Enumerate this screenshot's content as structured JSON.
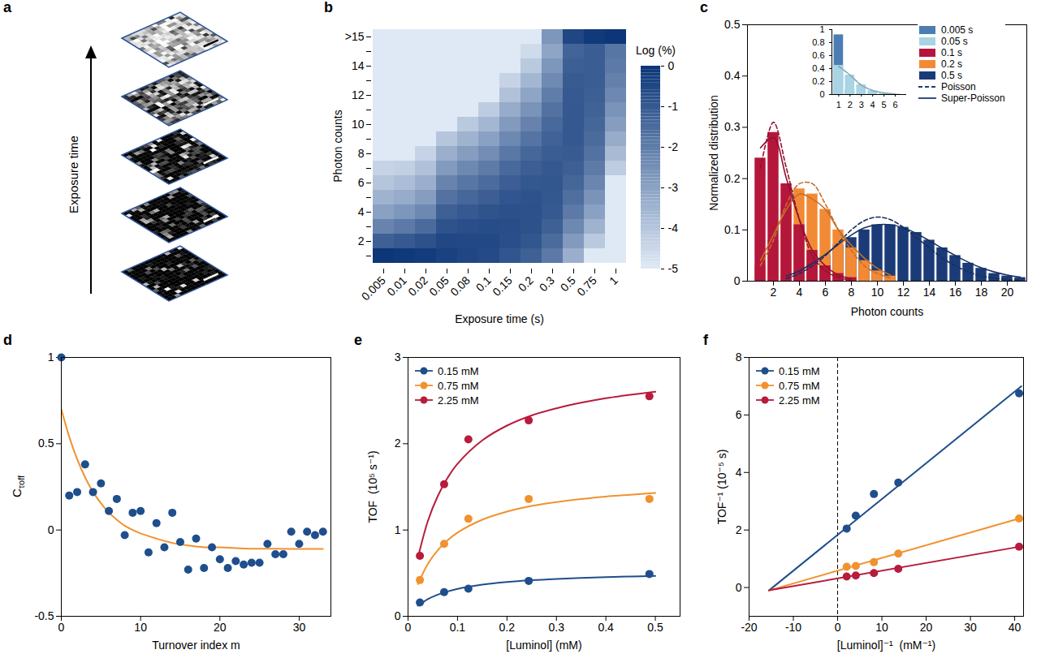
{
  "chart_data": [
    {
      "panel": "a",
      "type": "image_stack",
      "ylabel": "Exposure time"
    },
    {
      "panel": "b",
      "type": "heatmap",
      "xlabel": "Exposure time (s)",
      "ylabel": "Photon counts",
      "x": [
        0.005,
        0.01,
        0.02,
        0.05,
        0.08,
        0.1,
        0.15,
        0.2,
        0.3,
        0.5,
        0.75,
        1
      ],
      "categories": [
        null,
        2,
        null,
        4,
        null,
        6,
        null,
        8,
        null,
        10,
        null,
        12,
        null,
        14,
        null,
        ">15"
      ],
      "cells": [
        [
          -0.04,
          -1.2,
          -2.2,
          -3.0,
          -3.5,
          -4.0,
          -4.4,
          -5,
          -5,
          -5,
          -5,
          -5,
          -5,
          -5,
          -5,
          -5
        ],
        [
          -0.1,
          -1.0,
          -1.9,
          -2.7,
          -3.3,
          -3.8,
          -4.3,
          -5,
          -5,
          -5,
          -5,
          -5,
          -5,
          -5,
          -5,
          -5
        ],
        [
          -0.2,
          -0.8,
          -1.5,
          -2.3,
          -2.9,
          -3.4,
          -3.9,
          -4.4,
          -5,
          -5,
          -5,
          -5,
          -5,
          -5,
          -5,
          -5
        ],
        [
          -0.35,
          -0.52,
          -0.82,
          -1.2,
          -1.7,
          -2.2,
          -2.8,
          -3.4,
          -4.0,
          -5,
          -5,
          -5,
          -5,
          -5,
          -5,
          -5
        ],
        [
          -0.5,
          -0.55,
          -0.7,
          -1.0,
          -1.4,
          -1.8,
          -2.3,
          -2.9,
          -3.5,
          -4.1,
          -5,
          -5,
          -5,
          -5,
          -5,
          -5
        ],
        [
          -0.62,
          -0.54,
          -0.66,
          -0.85,
          -1.15,
          -1.5,
          -1.95,
          -2.45,
          -3.0,
          -3.6,
          -4.2,
          -5,
          -5,
          -5,
          -5,
          -5
        ],
        [
          -0.9,
          -0.7,
          -0.68,
          -0.75,
          -0.9,
          -1.15,
          -1.45,
          -1.85,
          -2.3,
          -2.8,
          -3.3,
          -3.9,
          -4.4,
          -5,
          -5,
          -5
        ],
        [
          -1.2,
          -0.92,
          -0.8,
          -0.78,
          -0.82,
          -0.95,
          -1.15,
          -1.4,
          -1.75,
          -2.15,
          -2.6,
          -3.1,
          -3.6,
          -4.1,
          -4.6,
          -5
        ],
        [
          -1.9,
          -1.5,
          -1.2,
          -1.0,
          -0.95,
          -0.93,
          -0.98,
          -1.1,
          -1.25,
          -1.45,
          -1.7,
          -2.0,
          -2.35,
          -2.7,
          -3.1,
          -2.7
        ],
        [
          -3.4,
          -2.8,
          -2.3,
          -1.9,
          -1.6,
          -1.35,
          -1.17,
          -1.05,
          -0.98,
          -0.96,
          -0.96,
          -1.0,
          -1.07,
          -1.17,
          -1.3,
          -0.5
        ],
        [
          -5,
          -4.1,
          -3.5,
          -3.0,
          -2.6,
          -2.25,
          -1.95,
          -1.7,
          -1.5,
          -1.35,
          -1.25,
          -1.17,
          -1.12,
          -1.1,
          -1.1,
          -0.15
        ],
        [
          -5,
          -5,
          -5,
          -5,
          -5,
          -5,
          -4.2,
          -3.7,
          -3.3,
          -2.9,
          -2.6,
          -2.3,
          -2.1,
          -1.9,
          -1.8,
          -0.03
        ]
      ],
      "colorbar": {
        "label": "Log (%)",
        "lim": [
          -5,
          0
        ],
        "ticks": [
          0,
          -1,
          -2,
          -3,
          -4,
          -5
        ]
      }
    },
    {
      "panel": "c",
      "type": "bar",
      "xlabel": "Photon counts",
      "ylabel": "Normalized distribution",
      "xlim": [
        0,
        21.5
      ],
      "xticks": [
        2,
        4,
        6,
        8,
        10,
        12,
        14,
        16,
        18,
        20
      ],
      "ylim": [
        0,
        0.5
      ],
      "yticks": [
        0,
        0.1,
        0.2,
        0.3,
        0.4,
        0.5
      ],
      "legend": "top-right",
      "series": [
        {
          "name": "0.1 s",
          "color": "#b5163b",
          "x": [
            1,
            2,
            3,
            4,
            5,
            6,
            7,
            8
          ],
          "values": [
            0.24,
            0.29,
            0.19,
            0.11,
            0.06,
            0.03,
            0.015,
            0.007
          ],
          "poisson": [
            0.22,
            0.31,
            0.22,
            0.12,
            0.05,
            0.02,
            0.007,
            0.002
          ],
          "super_poisson": [
            0.26,
            0.28,
            0.2,
            0.12,
            0.06,
            0.03,
            0.012,
            0.005
          ]
        },
        {
          "name": "0.2 s",
          "color": "#f28a35",
          "x": [
            1,
            2,
            3,
            4,
            5,
            6,
            7,
            8,
            9,
            10,
            11
          ],
          "values": [
            0.03,
            0.08,
            0.15,
            0.18,
            0.17,
            0.14,
            0.1,
            0.065,
            0.04,
            0.02,
            0.01
          ],
          "poisson": [
            0.03,
            0.08,
            0.15,
            0.19,
            0.19,
            0.15,
            0.1,
            0.06,
            0.03,
            0.015,
            0.006
          ],
          "super_poisson": [
            0.04,
            0.09,
            0.14,
            0.17,
            0.16,
            0.14,
            0.1,
            0.07,
            0.045,
            0.025,
            0.012
          ]
        },
        {
          "name": "0.5 s",
          "color": "#1b3b78",
          "x": [
            3,
            4,
            5,
            6,
            7,
            8,
            9,
            10,
            11,
            12,
            13,
            14,
            15,
            16,
            17,
            18,
            19,
            20,
            21
          ],
          "values": [
            0.01,
            0.02,
            0.035,
            0.05,
            0.07,
            0.085,
            0.1,
            0.11,
            0.11,
            0.105,
            0.095,
            0.08,
            0.065,
            0.05,
            0.035,
            0.025,
            0.015,
            0.01,
            0.007
          ],
          "poisson": [
            0.005,
            0.015,
            0.03,
            0.05,
            0.075,
            0.1,
            0.118,
            0.125,
            0.12,
            0.105,
            0.085,
            0.065,
            0.045,
            0.03,
            0.018,
            0.01,
            0.006,
            0.003,
            0.002
          ],
          "super_poisson": [
            0.01,
            0.02,
            0.035,
            0.052,
            0.072,
            0.09,
            0.104,
            0.11,
            0.11,
            0.104,
            0.093,
            0.079,
            0.064,
            0.05,
            0.037,
            0.026,
            0.018,
            0.012,
            0.008
          ]
        }
      ],
      "fit_legend": [
        {
          "name": "Poisson",
          "line_style": "dashed",
          "color": "#1b3b78"
        },
        {
          "name": "Super-Poisson",
          "line_style": "solid",
          "color": "#1b3b78"
        }
      ],
      "inset": {
        "type": "bar",
        "xlim": [
          0.4,
          7
        ],
        "xticks": [
          1,
          2,
          3,
          4,
          5,
          6
        ],
        "ylim": [
          0,
          1
        ],
        "yticks": [
          0,
          0.2,
          0.4,
          0.6,
          0.8,
          1
        ],
        "series": [
          {
            "name": "0.005 s",
            "color": "#4a7db3",
            "x": [
              1,
              2,
              3,
              4,
              5,
              6
            ],
            "values": [
              0.92,
              0.07,
              0.01,
              0,
              0,
              0
            ]
          },
          {
            "name": "0.05 s",
            "color": "#a8d4e4",
            "x": [
              1,
              2,
              3,
              4,
              5,
              6
            ],
            "values": [
              0.45,
              0.3,
              0.15,
              0.06,
              0.02,
              0.01
            ],
            "poisson": [
              0.43,
              0.3,
              0.15,
              0.065,
              0.025,
              0.008
            ],
            "super_poisson": [
              0.44,
              0.3,
              0.14,
              0.06,
              0.025,
              0.01
            ]
          }
        ]
      }
    },
    {
      "panel": "d",
      "type": "scatter",
      "xlabel": "Turnover index m",
      "ylabel": "C",
      "ylabel_subscript": "τoff",
      "xlim": [
        0,
        34
      ],
      "xticks": [
        0,
        10,
        20,
        30
      ],
      "ylim": [
        -0.5,
        1
      ],
      "yticks": [
        -0.5,
        0,
        0.5,
        1
      ],
      "marker": "circle",
      "color": "#1f4e8c",
      "x": [
        0,
        1,
        2,
        3,
        4,
        5,
        6,
        7,
        8,
        9,
        10,
        11,
        12,
        13,
        14,
        15,
        16,
        17,
        18,
        19,
        20,
        21,
        22,
        23,
        24,
        25,
        26,
        27,
        28,
        29,
        30,
        31,
        32,
        33
      ],
      "values": [
        1.0,
        0.2,
        0.22,
        0.38,
        0.22,
        0.27,
        0.11,
        0.18,
        -0.03,
        0.1,
        0.11,
        -0.13,
        0.04,
        -0.1,
        0.1,
        -0.07,
        -0.23,
        -0.05,
        -0.22,
        -0.1,
        -0.17,
        -0.22,
        -0.18,
        -0.2,
        -0.19,
        -0.19,
        -0.08,
        -0.14,
        -0.14,
        -0.01,
        -0.08,
        -0.01,
        -0.03,
        -0.01
      ],
      "fit": {
        "color": "#f0922f",
        "x": [
          0,
          1,
          2,
          3,
          4,
          5,
          6,
          7,
          8,
          9,
          10,
          12,
          14,
          16,
          18,
          20,
          22,
          24,
          27,
          30,
          33
        ],
        "values": [
          0.7,
          0.54,
          0.41,
          0.305,
          0.22,
          0.155,
          0.1,
          0.06,
          0.025,
          0.0,
          -0.02,
          -0.05,
          -0.075,
          -0.09,
          -0.1,
          -0.1,
          -0.105,
          -0.108,
          -0.109,
          -0.11,
          -0.11
        ]
      }
    },
    {
      "panel": "e",
      "type": "scatter",
      "xlabel": "[Luminol] (mM)",
      "ylabel": "TOF  (10⁵ s⁻¹)",
      "xlim": [
        0,
        0.55
      ],
      "xticks": [
        0,
        0.1,
        0.2,
        0.3,
        0.4,
        0.5
      ],
      "ylim": [
        0,
        3
      ],
      "yticks": [
        0,
        1,
        2,
        3
      ],
      "marker": "circle",
      "legend": "top-left",
      "x": [
        0.024,
        0.073,
        0.122,
        0.244,
        0.488
      ],
      "series": [
        {
          "name": "0.15 mM",
          "color": "#1f4e8c",
          "values": [
            0.16,
            0.28,
            0.32,
            0.41,
            0.49
          ],
          "fit": {
            "x": [
              0.02,
              0.04,
              0.06,
              0.08,
              0.1,
              0.15,
              0.2,
              0.25,
              0.3,
              0.35,
              0.4,
              0.45,
              0.5
            ],
            "values": [
              0.122,
              0.198,
              0.25,
              0.288,
              0.317,
              0.366,
              0.397,
              0.418,
              0.433,
              0.445,
              0.454,
              0.461,
              0.467
            ]
          }
        },
        {
          "name": "0.75 mM",
          "color": "#f0922f",
          "values": [
            0.42,
            0.84,
            1.13,
            1.36,
            1.36
          ],
          "fit": {
            "x": [
              0.02,
              0.04,
              0.06,
              0.08,
              0.1,
              0.15,
              0.2,
              0.25,
              0.3,
              0.35,
              0.4,
              0.45,
              0.5
            ],
            "values": [
              0.373,
              0.606,
              0.765,
              0.881,
              0.97,
              1.119,
              1.213,
              1.278,
              1.324,
              1.359,
              1.388,
              1.409,
              1.429
            ]
          }
        },
        {
          "name": "2.25 mM",
          "color": "#b71c3c",
          "values": [
            0.7,
            1.53,
            2.05,
            2.27,
            2.55
          ],
          "fit": {
            "x": [
              0.02,
              0.04,
              0.06,
              0.08,
              0.1,
              0.15,
              0.2,
              0.25,
              0.3,
              0.35,
              0.4,
              0.45,
              0.5
            ],
            "values": [
              0.679,
              1.103,
              1.392,
              1.605,
              1.767,
              2.038,
              2.21,
              2.328,
              2.41,
              2.475,
              2.528,
              2.567,
              2.602
            ]
          }
        }
      ]
    },
    {
      "panel": "f",
      "type": "scatter",
      "xlabel": "[Luminol]⁻¹  (mM⁻¹)",
      "ylabel": "TOF⁻¹ (10⁻⁵ s)",
      "xlim": [
        -20,
        42
      ],
      "xticks": [
        -20,
        -10,
        0,
        10,
        20,
        30,
        40
      ],
      "ylim": [
        -1,
        8
      ],
      "yticks": [
        0,
        2,
        4,
        6,
        8
      ],
      "marker": "circle",
      "legend": "top-left",
      "vline": {
        "x": 0,
        "line_style": "dashed"
      },
      "x": [
        2.05,
        4.1,
        8.2,
        13.7,
        41
      ],
      "series": [
        {
          "name": "0.15 mM",
          "color": "#1f4e8c",
          "values": [
            2.05,
            2.5,
            3.25,
            3.65,
            6.75
          ],
          "fit": {
            "x": [
              -15.5,
              41.5
            ],
            "values": [
              -0.1,
              7.0
            ]
          }
        },
        {
          "name": "0.75 mM",
          "color": "#f0922f",
          "values": [
            0.72,
            0.75,
            0.88,
            1.18,
            2.4
          ],
          "fit": {
            "x": [
              -15.5,
              41.5
            ],
            "values": [
              -0.1,
              2.42
            ]
          }
        },
        {
          "name": "2.25 mM",
          "color": "#b71c3c",
          "values": [
            0.38,
            0.42,
            0.5,
            0.65,
            1.42
          ],
          "fit": {
            "x": [
              -15.5,
              41.5
            ],
            "values": [
              -0.1,
              1.43
            ]
          }
        }
      ]
    }
  ]
}
